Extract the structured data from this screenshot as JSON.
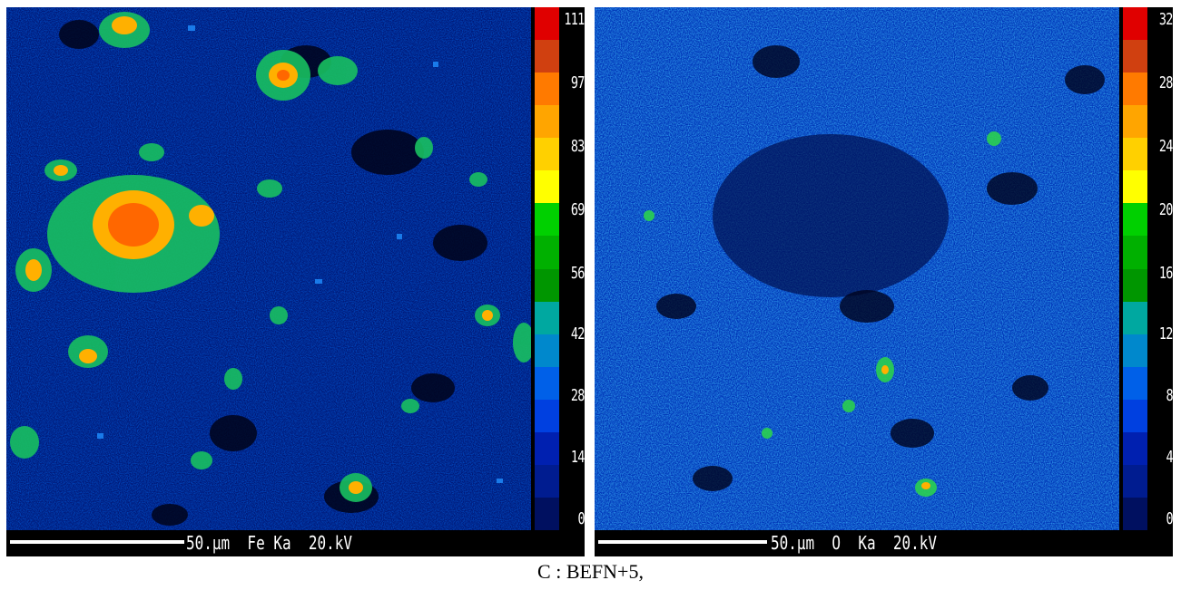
{
  "panels": [
    {
      "id": "fe",
      "scale_labels": [
        "111",
        "97",
        "83",
        "69",
        "56",
        "42",
        "28",
        "14",
        "0"
      ],
      "scale_bar_label": "50.µm  Fe Ka  20.kV"
    },
    {
      "id": "o",
      "scale_labels": [
        "32",
        "28",
        "24",
        "20",
        "16",
        "12",
        "8",
        "4",
        "0"
      ],
      "scale_bar_label": "50.µm  O  Ka  20.kV"
    }
  ],
  "colorbar_colors": [
    "#e00000",
    "#d04010",
    "#ff7a00",
    "#ffa500",
    "#ffd000",
    "#ffff00",
    "#00d000",
    "#00b000",
    "#009600",
    "#00a8a0",
    "#0088cc",
    "#0060e8",
    "#0040e0",
    "#0020b0",
    "#001c90",
    "#001060"
  ],
  "caption": "C : BEFN+5,"
}
